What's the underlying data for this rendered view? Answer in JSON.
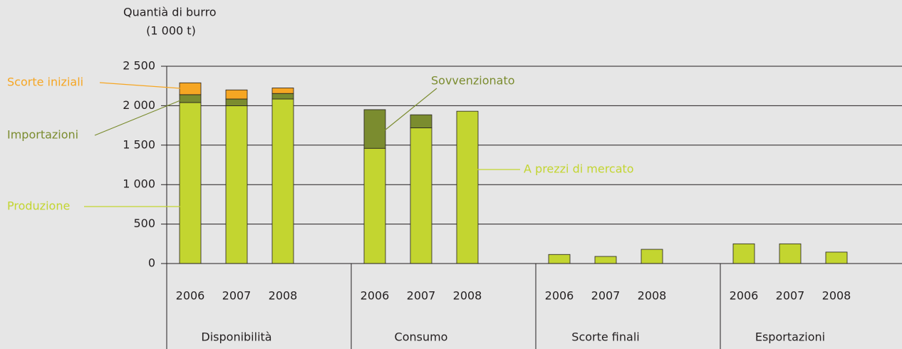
{
  "chart_data": {
    "type": "grouped_stacked_bar",
    "y_label": [
      "Quantià di burro",
      "(1 000 t)"
    ],
    "ylim": [
      0,
      2500
    ],
    "yticks": [
      0,
      500,
      {
        "value": 1000,
        "label": "1 000"
      },
      {
        "value": 1500,
        "label": "1 500"
      },
      {
        "value": 2000,
        "label": "2 000"
      },
      {
        "value": 2500,
        "label": "2 500"
      }
    ],
    "grid": true,
    "groups": [
      {
        "name": "Disponibilità",
        "categories": [
          "2006",
          "2007",
          "2008"
        ],
        "series": [
          {
            "name": "Produzione",
            "color": "#c3d530",
            "values": [
              2040,
              2000,
              2085
            ]
          },
          {
            "name": "Importazioni",
            "color": "#7b8c2f",
            "values": [
              100,
              85,
              70
            ]
          },
          {
            "name": "Scorte iniziali",
            "color": "#f6a623",
            "values": [
              150,
              115,
              70
            ]
          }
        ]
      },
      {
        "name": "Consumo",
        "categories": [
          "2006",
          "2007",
          "2008"
        ],
        "series": [
          {
            "name": "A prezzi di mercato",
            "color": "#c3d530",
            "values": [
              1460,
              1720,
              1930
            ]
          },
          {
            "name": "Sovvenzionato",
            "color": "#7b8c2f",
            "values": [
              490,
              165,
              0
            ]
          }
        ]
      },
      {
        "name": "Scorte finali",
        "categories": [
          "2006",
          "2007",
          "2008"
        ],
        "series": [
          {
            "color": "#c3d530",
            "values": [
              115,
              90,
              180
            ]
          }
        ]
      },
      {
        "name": "Esportazioni",
        "categories": [
          "2006",
          "2007",
          "2008"
        ],
        "series": [
          {
            "color": "#c3d530",
            "values": [
              250,
              250,
              145
            ]
          }
        ]
      }
    ]
  }
}
